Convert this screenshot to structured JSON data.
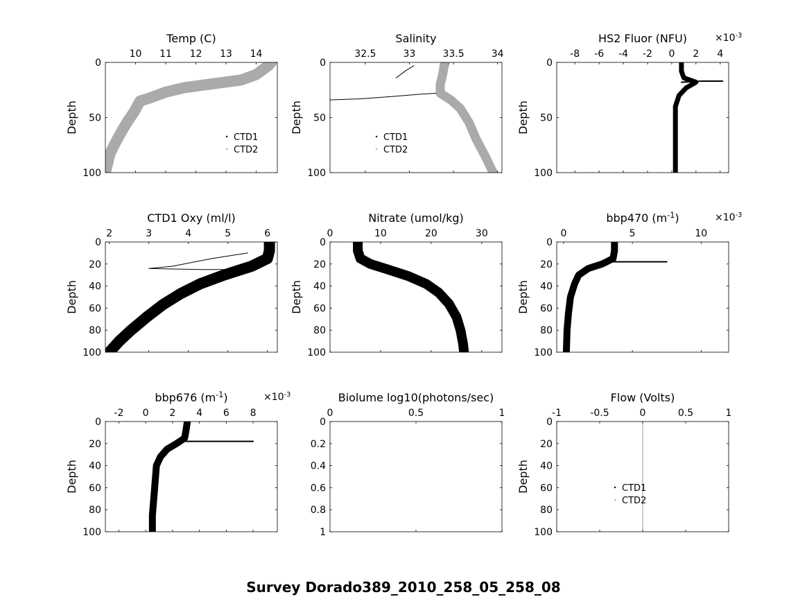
{
  "figure": {
    "title": "Survey Dorado389_2010_258_05_258_08",
    "depth_label": "Depth",
    "mark_color": "#000000",
    "ctd2_color": "#aaaaaa"
  },
  "chart_data": [
    {
      "id": "temp",
      "type": "scatter",
      "title": "Temp (C)",
      "ylabel": "Depth",
      "xlim": [
        9,
        14.7
      ],
      "ylim": [
        0,
        100
      ],
      "xticks": [
        10,
        11,
        12,
        13,
        14
      ],
      "yticks": [
        0,
        50,
        100
      ],
      "legend": [
        "CTD1",
        "CTD2"
      ],
      "legend_position": "lower-right",
      "series": [
        {
          "name": "CTD1",
          "color": "#000000",
          "width": 1.2,
          "points": [
            [
              14.6,
              0
            ],
            [
              14.5,
              3
            ],
            [
              14.3,
              7
            ],
            [
              14.1,
              11
            ],
            [
              13.6,
              16
            ],
            [
              12.5,
              20
            ],
            [
              11.7,
              23
            ],
            [
              11.1,
              27
            ],
            [
              10.6,
              32
            ],
            [
              10.2,
              35
            ],
            [
              10.0,
              45
            ],
            [
              9.8,
              53
            ],
            [
              9.6,
              62
            ],
            [
              9.4,
              72
            ],
            [
              9.2,
              83
            ],
            [
              9.05,
              100
            ]
          ]
        },
        {
          "name": "CTD2",
          "color": "#aaaaaa",
          "width": 16,
          "points": [
            [
              14.5,
              0
            ],
            [
              14.4,
              3
            ],
            [
              14.2,
              7
            ],
            [
              14.0,
              11
            ],
            [
              13.5,
              16
            ],
            [
              12.4,
              20
            ],
            [
              11.6,
              23
            ],
            [
              11.0,
              27
            ],
            [
              10.5,
              32
            ],
            [
              10.15,
              35
            ],
            [
              9.95,
              45
            ],
            [
              9.75,
              53
            ],
            [
              9.55,
              62
            ],
            [
              9.35,
              72
            ],
            [
              9.15,
              83
            ],
            [
              9.0,
              100
            ]
          ]
        }
      ]
    },
    {
      "id": "salinity",
      "type": "scatter",
      "title": "Salinity",
      "ylabel": "Depth",
      "xlim": [
        32.1,
        34.05
      ],
      "ylim": [
        0,
        100
      ],
      "xticks": [
        32.5,
        33,
        33.5,
        34
      ],
      "yticks": [
        0,
        50,
        100
      ],
      "legend": [
        "CTD1",
        "CTD2"
      ],
      "legend_position": "lower-left",
      "series": [
        {
          "name": "CTD1",
          "color": "#000000",
          "width": 1.4,
          "points": [
            [
              33.45,
              0
            ],
            [
              33.42,
              10
            ],
            [
              33.38,
              20
            ],
            [
              33.38,
              28
            ],
            [
              33.5,
              34
            ],
            [
              33.62,
              42
            ],
            [
              33.72,
              55
            ],
            [
              33.8,
              70
            ],
            [
              33.9,
              85
            ],
            [
              34.0,
              100
            ]
          ]
        },
        {
          "name": "CTD2",
          "color": "#aaaaaa",
          "width": 13,
          "points": [
            [
              33.4,
              0
            ],
            [
              33.38,
              10
            ],
            [
              33.35,
              20
            ],
            [
              33.35,
              28
            ],
            [
              33.47,
              34
            ],
            [
              33.58,
              42
            ],
            [
              33.68,
              55
            ],
            [
              33.76,
              70
            ],
            [
              33.86,
              85
            ],
            [
              33.95,
              100
            ]
          ]
        },
        {
          "name": "CTD1 intrusion",
          "color": "#000000",
          "width": 1.0,
          "points": [
            [
              32.1,
              34
            ],
            [
              32.45,
              33
            ],
            [
              32.8,
              31
            ],
            [
              33.1,
              29
            ],
            [
              33.3,
              28
            ]
          ]
        },
        {
          "name": "CTD1 surface streak",
          "color": "#000000",
          "width": 1.0,
          "points": [
            [
              32.85,
              14
            ],
            [
              32.95,
              8
            ],
            [
              33.05,
              3
            ]
          ]
        }
      ]
    },
    {
      "id": "fluor",
      "type": "scatter",
      "title": "HS2 Fluor (NFU)",
      "multiplier": "×10-3",
      "ylabel": "Depth",
      "xlim": [
        -9.5,
        4.7
      ],
      "ylim": [
        0,
        100
      ],
      "xticks": [
        -8,
        -6,
        -4,
        -2,
        0,
        2,
        4
      ],
      "yticks": [
        0,
        50,
        100
      ],
      "legend": [],
      "legend_position": "none",
      "series": [
        {
          "name": "CTD1",
          "color": "#000000",
          "width": 7,
          "points": [
            [
              0.8,
              0
            ],
            [
              0.8,
              8
            ],
            [
              1.0,
              14
            ],
            [
              2.0,
              18
            ],
            [
              1.2,
              23
            ],
            [
              0.6,
              30
            ],
            [
              0.3,
              40
            ],
            [
              0.3,
              55
            ],
            [
              0.3,
              75
            ],
            [
              0.3,
              100
            ]
          ]
        },
        {
          "name": "CTD1 peak",
          "color": "#000000",
          "width": 2,
          "points": [
            [
              0.8,
              18
            ],
            [
              2.5,
              17
            ],
            [
              4.2,
              17
            ]
          ]
        }
      ]
    },
    {
      "id": "oxy",
      "type": "scatter",
      "title": "CTD1 Oxy (ml/l)",
      "ylabel": "Depth",
      "xlim": [
        1.9,
        6.25
      ],
      "ylim": [
        0,
        100
      ],
      "xticks": [
        2,
        3,
        4,
        5,
        6
      ],
      "yticks": [
        0,
        20,
        40,
        60,
        80,
        100
      ],
      "legend": [],
      "legend_position": "none",
      "series": [
        {
          "name": "CTD1",
          "color": "#000000",
          "width": 16,
          "points": [
            [
              6.05,
              0
            ],
            [
              6.05,
              8
            ],
            [
              6.0,
              15
            ],
            [
              5.6,
              22
            ],
            [
              4.9,
              30
            ],
            [
              4.3,
              38
            ],
            [
              3.8,
              47
            ],
            [
              3.35,
              57
            ],
            [
              2.95,
              68
            ],
            [
              2.55,
              80
            ],
            [
              2.25,
              90
            ],
            [
              2.0,
              100
            ]
          ]
        },
        {
          "name": "CTD1 excursion",
          "color": "#000000",
          "width": 1.0,
          "points": [
            [
              5.5,
              10
            ],
            [
              4.6,
              15
            ],
            [
              3.6,
              22
            ],
            [
              3.0,
              24
            ],
            [
              4.3,
              25
            ],
            [
              5.7,
              25
            ]
          ]
        }
      ]
    },
    {
      "id": "nitrate",
      "type": "scatter",
      "title": "Nitrate (umol/kg)",
      "ylabel": "Depth",
      "xlim": [
        0,
        34
      ],
      "ylim": [
        0,
        100
      ],
      "xticks": [
        0,
        10,
        20,
        30
      ],
      "yticks": [
        0,
        20,
        40,
        60,
        80,
        100
      ],
      "legend": [],
      "legend_position": "none",
      "series": [
        {
          "name": "Nitrate",
          "color": "#000000",
          "width": 14,
          "points": [
            [
              5.5,
              0
            ],
            [
              5.5,
              8
            ],
            [
              6.0,
              15
            ],
            [
              8.0,
              20
            ],
            [
              11.5,
              25
            ],
            [
              15.5,
              31
            ],
            [
              19,
              38
            ],
            [
              21.5,
              46
            ],
            [
              23.5,
              56
            ],
            [
              25,
              68
            ],
            [
              25.8,
              80
            ],
            [
              26.3,
              92
            ],
            [
              26.5,
              100
            ]
          ]
        }
      ]
    },
    {
      "id": "bbp470",
      "type": "scatter",
      "title": "bbp470 (m-1)",
      "multiplier": "×10-3",
      "ylabel": "Depth",
      "xlim": [
        -0.5,
        12
      ],
      "ylim": [
        0,
        100
      ],
      "xticks": [
        0,
        5,
        10
      ],
      "yticks": [
        0,
        20,
        40,
        60,
        80,
        100
      ],
      "legend": [],
      "legend_position": "none",
      "series": [
        {
          "name": "bbp470",
          "color": "#000000",
          "width": 10,
          "points": [
            [
              3.7,
              0
            ],
            [
              3.7,
              8
            ],
            [
              3.6,
              15
            ],
            [
              2.8,
              20
            ],
            [
              1.8,
              24
            ],
            [
              1.1,
              30
            ],
            [
              0.8,
              38
            ],
            [
              0.5,
              50
            ],
            [
              0.35,
              65
            ],
            [
              0.25,
              80
            ],
            [
              0.2,
              100
            ]
          ]
        },
        {
          "name": "bbp470 peak",
          "color": "#000000",
          "width": 2,
          "points": [
            [
              3.5,
              18
            ],
            [
              5.5,
              18
            ],
            [
              7.5,
              18
            ]
          ]
        }
      ]
    },
    {
      "id": "bbp676",
      "type": "scatter",
      "title": "bbp676 (m-1)",
      "multiplier": "×10-3",
      "ylabel": "Depth",
      "xlim": [
        -3,
        9.8
      ],
      "ylim": [
        0,
        100
      ],
      "xticks": [
        -2,
        0,
        2,
        4,
        6,
        8
      ],
      "yticks": [
        0,
        20,
        40,
        60,
        80,
        100
      ],
      "legend": [],
      "legend_position": "none",
      "series": [
        {
          "name": "bbp676",
          "color": "#000000",
          "width": 10,
          "points": [
            [
              3.1,
              0
            ],
            [
              3.0,
              8
            ],
            [
              2.9,
              15
            ],
            [
              2.3,
              20
            ],
            [
              1.6,
              25
            ],
            [
              1.1,
              32
            ],
            [
              0.8,
              40
            ],
            [
              0.7,
              55
            ],
            [
              0.6,
              70
            ],
            [
              0.5,
              85
            ],
            [
              0.5,
              100
            ]
          ]
        },
        {
          "name": "bbp676 peak",
          "color": "#000000",
          "width": 2,
          "points": [
            [
              3.0,
              18
            ],
            [
              5.5,
              18
            ],
            [
              8.0,
              18
            ]
          ]
        }
      ]
    },
    {
      "id": "biolume",
      "type": "scatter",
      "title": "Biolume log10(photons/sec)",
      "ylabel": "",
      "xlim": [
        0,
        1
      ],
      "ylim": [
        0,
        1
      ],
      "xticks": [
        0,
        0.5,
        1
      ],
      "yticks": [
        0,
        0.2,
        0.4,
        0.6,
        0.8,
        1
      ],
      "legend": [],
      "legend_position": "none",
      "series": []
    },
    {
      "id": "flow",
      "type": "scatter",
      "title": "Flow (Volts)",
      "ylabel": "Depth",
      "xlim": [
        -1,
        1
      ],
      "ylim": [
        0,
        100
      ],
      "xticks": [
        -1,
        -0.5,
        0,
        0.5,
        1
      ],
      "yticks": [
        0,
        20,
        40,
        60,
        80,
        100
      ],
      "legend": [
        "CTD1",
        "CTD2"
      ],
      "legend_position": "lower-center",
      "series": [
        {
          "name": "CTD2",
          "color": "#aaaaaa",
          "width": 1.2,
          "points": [
            [
              0,
              0
            ],
            [
              0,
              100
            ]
          ]
        }
      ]
    }
  ]
}
